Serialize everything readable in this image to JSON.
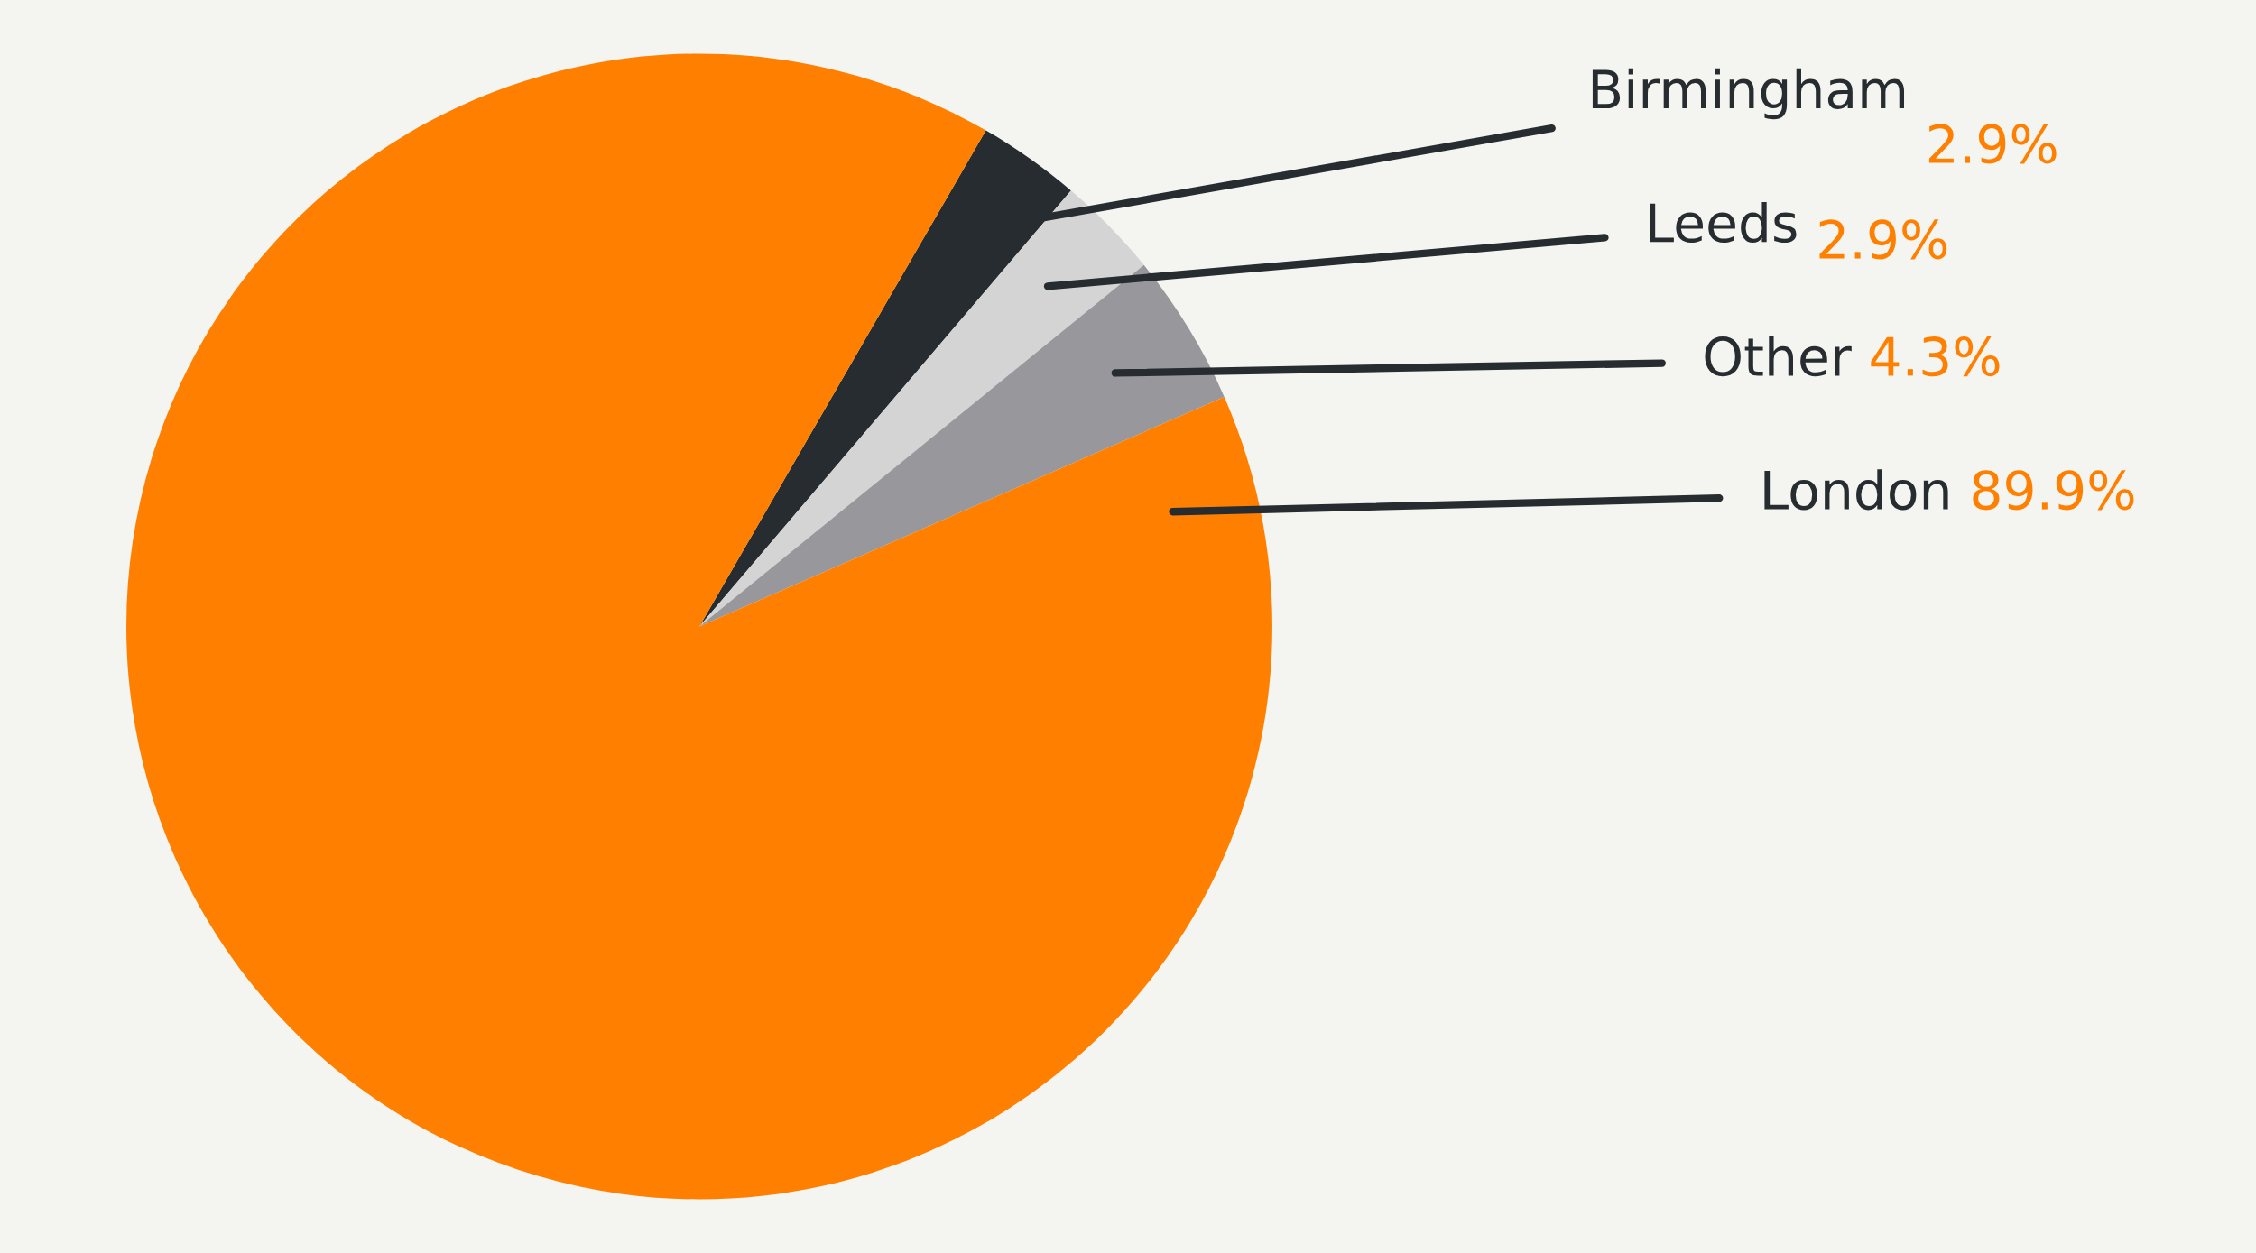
{
  "chart_data": {
    "type": "pie",
    "categories": [
      "Birmingham",
      "Leeds",
      "Other",
      "London"
    ],
    "values": [
      2.9,
      2.9,
      4.3,
      89.9
    ],
    "value_labels": [
      "2.9%",
      "2.9%",
      "4.3%",
      "89.9%"
    ],
    "colors": [
      "#262c30",
      "#d3d4d3",
      "#98979c",
      "#ff8000"
    ]
  }
}
